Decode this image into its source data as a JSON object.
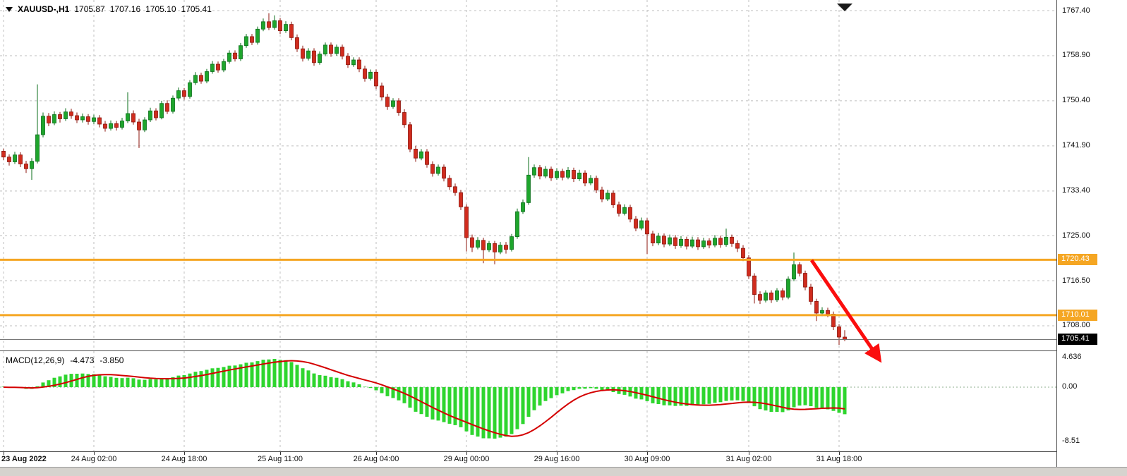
{
  "header": {
    "symbol": "XAUUSD-,H1",
    "open": "1705.87",
    "high": "1707.16",
    "low": "1705.10",
    "close": "1705.41"
  },
  "colors": {
    "background": "#ffffff",
    "grid": "#bfbfbf",
    "candle_up": "#1ea52c",
    "candle_up_border": "#0a6e1a",
    "candle_down": "#d02c1e",
    "candle_down_border": "#8c150c",
    "sr_line": "#f5a623",
    "sr_tag_bg": "#f5a623",
    "sr_tag_fg": "#ffffff",
    "current_tag_bg": "#000000",
    "current_tag_fg": "#ffffff",
    "bid_line": "#777777",
    "macd_hist": "#2ed52e",
    "macd_signal": "#d40000",
    "zero_line": "#8faf8f",
    "arrow": "#fb0d0d",
    "axis_text": "#000000"
  },
  "chart_data": [
    {
      "type": "candlestick",
      "symbol": "XAUUSD-",
      "timeframe": "H1",
      "title": "XAUUSD- H1 candlestick chart",
      "ylim": [
        1703.0,
        1768.5
      ],
      "y_gridlines": [
        {
          "label": "1767.40",
          "value": 1767.4
        },
        {
          "label": "1758.90",
          "value": 1758.9
        },
        {
          "label": "1750.40",
          "value": 1750.4
        },
        {
          "label": "1741.90",
          "value": 1741.9
        },
        {
          "label": "1733.40",
          "value": 1733.4
        },
        {
          "label": "1725.00",
          "value": 1725.0
        },
        {
          "label": "1716.50",
          "value": 1716.5
        },
        {
          "label": "1708.00",
          "value": 1708.0
        }
      ],
      "x_ticks": [
        {
          "label": "23 Aug 2022",
          "index": 0
        },
        {
          "label": "24 Aug 02:00",
          "index": 16
        },
        {
          "label": "24 Aug 18:00",
          "index": 32
        },
        {
          "label": "25 Aug 11:00",
          "index": 49
        },
        {
          "label": "26 Aug 04:00",
          "index": 66
        },
        {
          "label": "29 Aug 00:00",
          "index": 82
        },
        {
          "label": "29 Aug 16:00",
          "index": 98
        },
        {
          "label": "30 Aug 09:00",
          "index": 114
        },
        {
          "label": "31 Aug 02:00",
          "index": 132
        },
        {
          "label": "31 Aug 18:00",
          "index": 148
        }
      ],
      "support_resistance_lines": [
        {
          "label": "1720.43",
          "value": 1720.43
        },
        {
          "label": "1710.01",
          "value": 1710.01
        }
      ],
      "current_price": {
        "label": "1705.41",
        "value": 1705.41
      },
      "candles": [
        [
          1740.9,
          1741.4,
          1739.2,
          1739.8
        ],
        [
          1739.8,
          1740.3,
          1738.2,
          1738.9
        ],
        [
          1738.9,
          1740.8,
          1738.5,
          1740.2
        ],
        [
          1740.2,
          1740.7,
          1737.9,
          1738.5
        ],
        [
          1738.5,
          1739.1,
          1736.8,
          1737.6
        ],
        [
          1737.6,
          1739.6,
          1735.5,
          1739.0
        ],
        [
          1739.0,
          1753.5,
          1738.6,
          1744.0
        ],
        [
          1744.0,
          1748.2,
          1743.5,
          1747.5
        ],
        [
          1747.5,
          1748.1,
          1745.6,
          1746.2
        ],
        [
          1746.2,
          1748.4,
          1745.8,
          1747.8
        ],
        [
          1747.8,
          1748.3,
          1746.3,
          1747.0
        ],
        [
          1747.0,
          1749.0,
          1746.6,
          1748.3
        ],
        [
          1748.3,
          1748.9,
          1747.0,
          1747.6
        ],
        [
          1747.6,
          1748.2,
          1746.2,
          1746.8
        ],
        [
          1746.8,
          1748.0,
          1746.3,
          1747.4
        ],
        [
          1747.4,
          1747.9,
          1745.9,
          1746.5
        ],
        [
          1746.5,
          1747.8,
          1746.0,
          1747.2
        ],
        [
          1747.2,
          1747.7,
          1745.4,
          1746.0
        ],
        [
          1746.0,
          1746.6,
          1744.6,
          1745.2
        ],
        [
          1745.2,
          1746.7,
          1744.8,
          1746.1
        ],
        [
          1746.1,
          1746.6,
          1744.8,
          1745.4
        ],
        [
          1745.4,
          1747.2,
          1745.0,
          1746.6
        ],
        [
          1746.6,
          1752.0,
          1746.2,
          1748.0
        ],
        [
          1748.0,
          1748.6,
          1745.9,
          1746.4
        ],
        [
          1746.4,
          1747.0,
          1741.5,
          1744.9
        ],
        [
          1744.9,
          1747.3,
          1744.5,
          1746.8
        ],
        [
          1746.8,
          1749.1,
          1746.4,
          1748.5
        ],
        [
          1748.5,
          1749.0,
          1746.7,
          1747.2
        ],
        [
          1747.2,
          1750.4,
          1746.9,
          1749.9
        ],
        [
          1749.9,
          1750.5,
          1747.9,
          1748.4
        ],
        [
          1748.4,
          1751.4,
          1748.0,
          1750.9
        ],
        [
          1750.9,
          1752.9,
          1750.5,
          1752.3
        ],
        [
          1752.3,
          1752.8,
          1750.6,
          1751.2
        ],
        [
          1751.2,
          1754.3,
          1750.8,
          1753.8
        ],
        [
          1753.8,
          1755.8,
          1753.4,
          1755.2
        ],
        [
          1755.2,
          1755.7,
          1753.6,
          1754.1
        ],
        [
          1754.1,
          1756.4,
          1753.7,
          1755.9
        ],
        [
          1755.9,
          1757.9,
          1755.5,
          1757.3
        ],
        [
          1757.3,
          1757.8,
          1755.7,
          1756.2
        ],
        [
          1756.2,
          1758.3,
          1755.8,
          1757.8
        ],
        [
          1757.8,
          1759.9,
          1757.4,
          1759.4
        ],
        [
          1759.4,
          1759.9,
          1757.8,
          1758.3
        ],
        [
          1758.3,
          1761.3,
          1757.9,
          1760.8
        ],
        [
          1760.8,
          1763.0,
          1760.4,
          1762.5
        ],
        [
          1762.5,
          1763.0,
          1760.9,
          1761.4
        ],
        [
          1761.4,
          1764.4,
          1761.0,
          1763.9
        ],
        [
          1763.9,
          1765.9,
          1763.5,
          1765.3
        ],
        [
          1765.3,
          1766.9,
          1763.7,
          1764.2
        ],
        [
          1764.2,
          1766.5,
          1763.8,
          1765.5
        ],
        [
          1765.5,
          1766.0,
          1763.0,
          1763.6
        ],
        [
          1763.6,
          1765.4,
          1763.2,
          1764.8
        ],
        [
          1764.8,
          1765.3,
          1761.8,
          1762.3
        ],
        [
          1762.3,
          1762.9,
          1759.6,
          1760.2
        ],
        [
          1760.2,
          1760.8,
          1757.8,
          1758.4
        ],
        [
          1758.4,
          1760.3,
          1758.0,
          1759.8
        ],
        [
          1759.8,
          1760.3,
          1757.0,
          1757.6
        ],
        [
          1757.6,
          1759.7,
          1757.2,
          1759.2
        ],
        [
          1759.2,
          1761.4,
          1758.8,
          1760.9
        ],
        [
          1760.9,
          1761.4,
          1758.7,
          1759.3
        ],
        [
          1759.3,
          1761.0,
          1758.9,
          1760.5
        ],
        [
          1760.5,
          1761.0,
          1758.2,
          1758.8
        ],
        [
          1758.8,
          1759.4,
          1756.6,
          1757.2
        ],
        [
          1757.2,
          1758.6,
          1756.8,
          1758.1
        ],
        [
          1758.1,
          1758.6,
          1755.8,
          1756.4
        ],
        [
          1756.4,
          1757.0,
          1754.0,
          1754.6
        ],
        [
          1754.6,
          1756.3,
          1754.2,
          1755.8
        ],
        [
          1755.8,
          1756.3,
          1752.6,
          1753.2
        ],
        [
          1753.2,
          1753.8,
          1750.5,
          1751.1
        ],
        [
          1751.1,
          1751.7,
          1748.7,
          1749.3
        ],
        [
          1749.3,
          1750.9,
          1748.9,
          1750.4
        ],
        [
          1750.4,
          1750.9,
          1747.6,
          1748.2
        ],
        [
          1748.2,
          1748.8,
          1745.3,
          1745.9
        ],
        [
          1745.9,
          1746.4,
          1740.7,
          1741.3
        ],
        [
          1741.3,
          1741.9,
          1738.9,
          1739.6
        ],
        [
          1739.6,
          1741.3,
          1739.2,
          1740.8
        ],
        [
          1740.8,
          1741.3,
          1737.8,
          1738.4
        ],
        [
          1738.4,
          1739.0,
          1736.1,
          1736.7
        ],
        [
          1736.7,
          1738.4,
          1736.3,
          1737.9
        ],
        [
          1737.9,
          1738.4,
          1735.2,
          1735.8
        ],
        [
          1735.8,
          1736.4,
          1733.6,
          1734.2
        ],
        [
          1734.2,
          1734.8,
          1732.5,
          1733.1
        ],
        [
          1733.1,
          1733.6,
          1729.8,
          1730.4
        ],
        [
          1730.4,
          1730.9,
          1722.0,
          1724.6
        ],
        [
          1724.6,
          1725.2,
          1721.9,
          1722.8
        ],
        [
          1722.8,
          1724.7,
          1722.4,
          1724.1
        ],
        [
          1724.1,
          1724.6,
          1719.8,
          1722.3
        ],
        [
          1722.3,
          1724.0,
          1721.9,
          1723.5
        ],
        [
          1723.5,
          1724.0,
          1719.6,
          1721.9
        ],
        [
          1721.9,
          1723.8,
          1721.5,
          1723.2
        ],
        [
          1723.2,
          1723.8,
          1721.6,
          1722.4
        ],
        [
          1722.4,
          1725.3,
          1722.0,
          1724.8
        ],
        [
          1724.8,
          1730.1,
          1724.4,
          1729.5
        ],
        [
          1729.5,
          1731.8,
          1729.1,
          1731.2
        ],
        [
          1731.2,
          1739.8,
          1730.8,
          1736.4
        ],
        [
          1736.4,
          1738.4,
          1735.9,
          1737.8
        ],
        [
          1737.8,
          1738.3,
          1735.6,
          1736.2
        ],
        [
          1736.2,
          1738.1,
          1735.8,
          1737.5
        ],
        [
          1737.5,
          1738.0,
          1735.3,
          1735.9
        ],
        [
          1735.9,
          1737.7,
          1735.5,
          1737.1
        ],
        [
          1737.1,
          1737.6,
          1735.4,
          1736.0
        ],
        [
          1736.0,
          1737.9,
          1735.6,
          1737.3
        ],
        [
          1737.3,
          1737.8,
          1735.1,
          1735.7
        ],
        [
          1735.7,
          1737.4,
          1735.3,
          1736.8
        ],
        [
          1736.8,
          1737.3,
          1734.3,
          1734.9
        ],
        [
          1734.9,
          1736.4,
          1734.5,
          1735.8
        ],
        [
          1735.8,
          1736.3,
          1733.0,
          1733.6
        ],
        [
          1733.6,
          1734.2,
          1731.3,
          1731.9
        ],
        [
          1731.9,
          1733.6,
          1731.5,
          1733.0
        ],
        [
          1733.0,
          1733.5,
          1730.2,
          1730.8
        ],
        [
          1730.8,
          1731.4,
          1728.6,
          1729.2
        ],
        [
          1729.2,
          1730.9,
          1728.8,
          1730.3
        ],
        [
          1730.3,
          1730.8,
          1727.5,
          1728.1
        ],
        [
          1728.1,
          1728.7,
          1725.8,
          1726.4
        ],
        [
          1726.4,
          1728.4,
          1726.0,
          1727.8
        ],
        [
          1727.8,
          1728.3,
          1721.5,
          1725.3
        ],
        [
          1725.3,
          1725.9,
          1723.0,
          1723.6
        ],
        [
          1723.6,
          1725.5,
          1723.2,
          1724.9
        ],
        [
          1724.9,
          1725.4,
          1722.8,
          1723.4
        ],
        [
          1723.4,
          1725.2,
          1723.0,
          1724.6
        ],
        [
          1724.6,
          1725.1,
          1722.5,
          1723.1
        ],
        [
          1723.1,
          1724.9,
          1722.7,
          1724.3
        ],
        [
          1724.3,
          1724.8,
          1722.4,
          1723.0
        ],
        [
          1723.0,
          1724.8,
          1722.6,
          1724.2
        ],
        [
          1724.2,
          1724.7,
          1722.3,
          1722.9
        ],
        [
          1722.9,
          1724.6,
          1722.5,
          1724.0
        ],
        [
          1724.0,
          1724.5,
          1722.6,
          1723.2
        ],
        [
          1723.2,
          1725.1,
          1722.8,
          1724.5
        ],
        [
          1724.5,
          1725.0,
          1722.7,
          1723.3
        ],
        [
          1723.3,
          1726.3,
          1722.9,
          1724.7
        ],
        [
          1724.7,
          1725.2,
          1722.9,
          1723.5
        ],
        [
          1723.5,
          1724.1,
          1721.9,
          1722.6
        ],
        [
          1722.6,
          1723.2,
          1720.2,
          1720.8
        ],
        [
          1720.8,
          1721.3,
          1716.8,
          1717.4
        ],
        [
          1717.4,
          1717.9,
          1712.2,
          1713.9
        ],
        [
          1713.9,
          1714.5,
          1712.1,
          1712.8
        ],
        [
          1712.8,
          1714.7,
          1712.4,
          1714.2
        ],
        [
          1714.2,
          1714.7,
          1712.3,
          1712.9
        ],
        [
          1712.9,
          1715.1,
          1712.5,
          1714.6
        ],
        [
          1714.6,
          1715.1,
          1712.8,
          1713.4
        ],
        [
          1713.4,
          1717.3,
          1713.0,
          1716.8
        ],
        [
          1716.8,
          1721.8,
          1716.4,
          1719.5
        ],
        [
          1719.5,
          1720.0,
          1717.3,
          1717.9
        ],
        [
          1717.9,
          1718.4,
          1714.7,
          1715.3
        ],
        [
          1715.3,
          1715.9,
          1712.0,
          1712.6
        ],
        [
          1712.6,
          1713.1,
          1708.9,
          1710.4
        ],
        [
          1710.4,
          1711.5,
          1709.8,
          1710.9
        ],
        [
          1710.9,
          1711.4,
          1709.6,
          1710.2
        ],
        [
          1710.2,
          1710.7,
          1707.2,
          1707.8
        ],
        [
          1707.8,
          1708.3,
          1704.4,
          1705.87
        ],
        [
          1705.87,
          1707.16,
          1705.1,
          1705.41
        ]
      ]
    },
    {
      "type": "bar",
      "name": "MACD",
      "label": "MACD(12,26,9)",
      "value_main": "-4.473",
      "value_signal": "-3.850",
      "params": {
        "fast": 12,
        "slow": 26,
        "signal": 9
      },
      "source": "MACD histogram and red signal line computed from the candle close series with periods 12/26/9",
      "y_labels": [
        {
          "label": "4.636",
          "value": 4.636
        },
        {
          "label": "0.00",
          "value": 0
        },
        {
          "label": "-8.51",
          "value": -8.51
        }
      ],
      "ylim": [
        -8.51,
        4.636
      ]
    }
  ]
}
